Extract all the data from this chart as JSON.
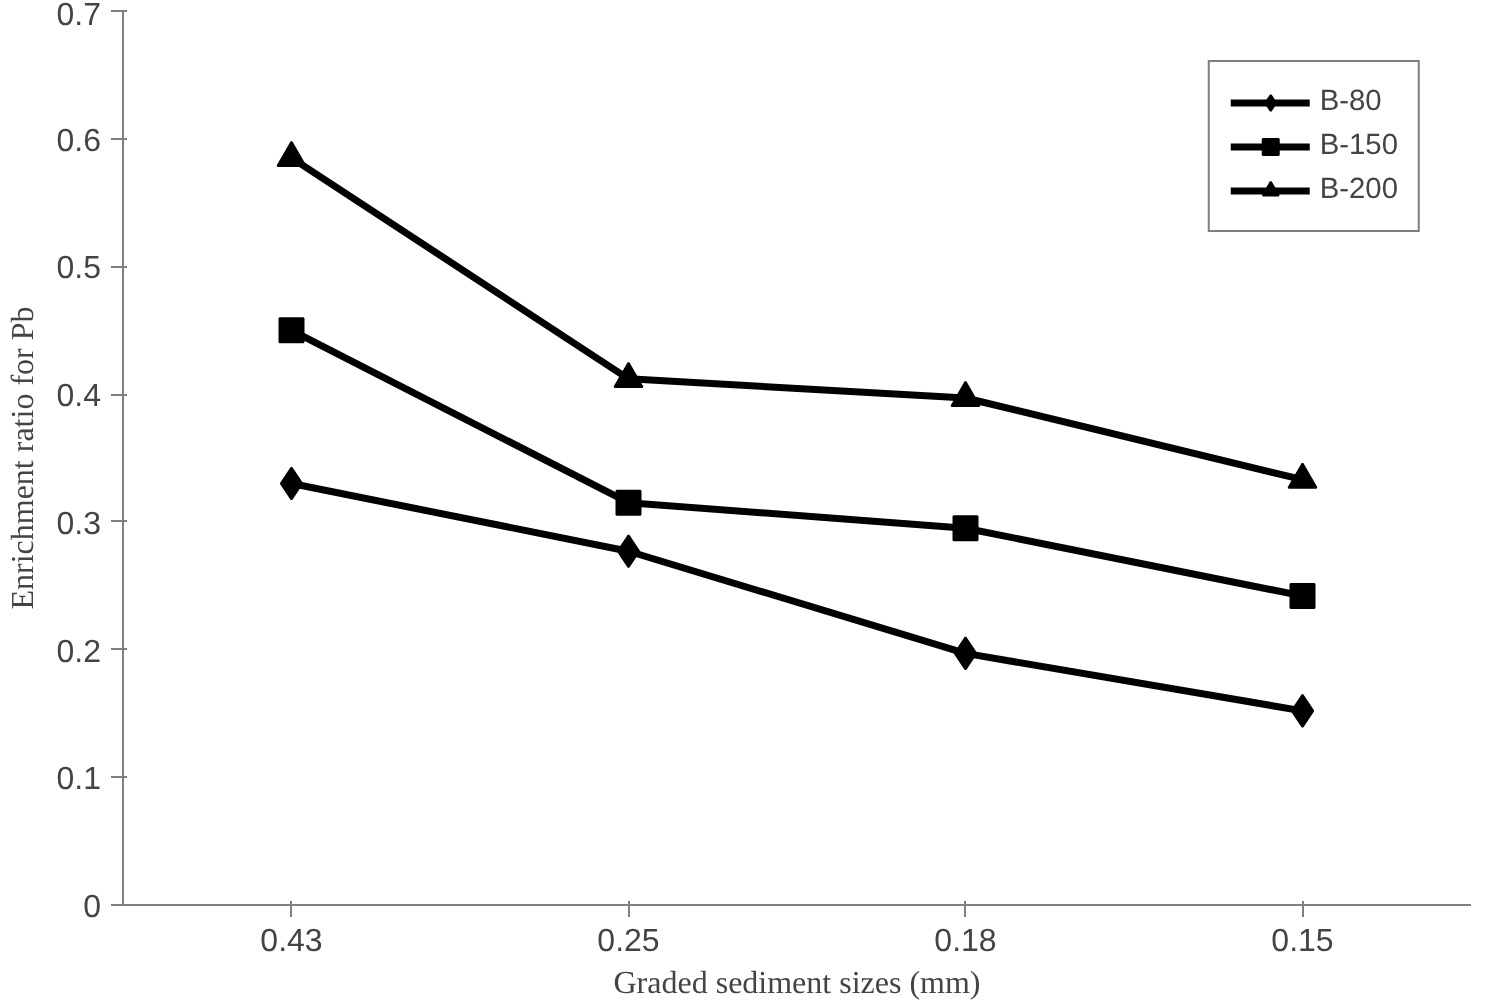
{
  "chart_data": {
    "type": "line",
    "xlabel": "Graded sediment sizes (mm)",
    "ylabel": "Enrichment ratio for Pb",
    "categories": [
      "0.43",
      "0.25",
      "0.18",
      "0.15"
    ],
    "series": [
      {
        "name": "B-80",
        "color": "#000000",
        "marker": "diamond",
        "values": [
          0.33,
          0.277,
          0.197,
          0.152
        ]
      },
      {
        "name": "B-150",
        "color": "#000000",
        "marker": "square",
        "values": [
          0.45,
          0.315,
          0.295,
          0.242
        ]
      },
      {
        "name": "B-200",
        "color": "#000000",
        "marker": "triangle",
        "values": [
          0.585,
          0.412,
          0.397,
          0.333
        ]
      }
    ],
    "ylim": [
      0,
      0.7
    ],
    "yticks": [
      0,
      0.1,
      0.2,
      0.3,
      0.4,
      0.5,
      0.6,
      0.7
    ],
    "grid": false,
    "legend": "top right",
    "line_style": "solid"
  }
}
